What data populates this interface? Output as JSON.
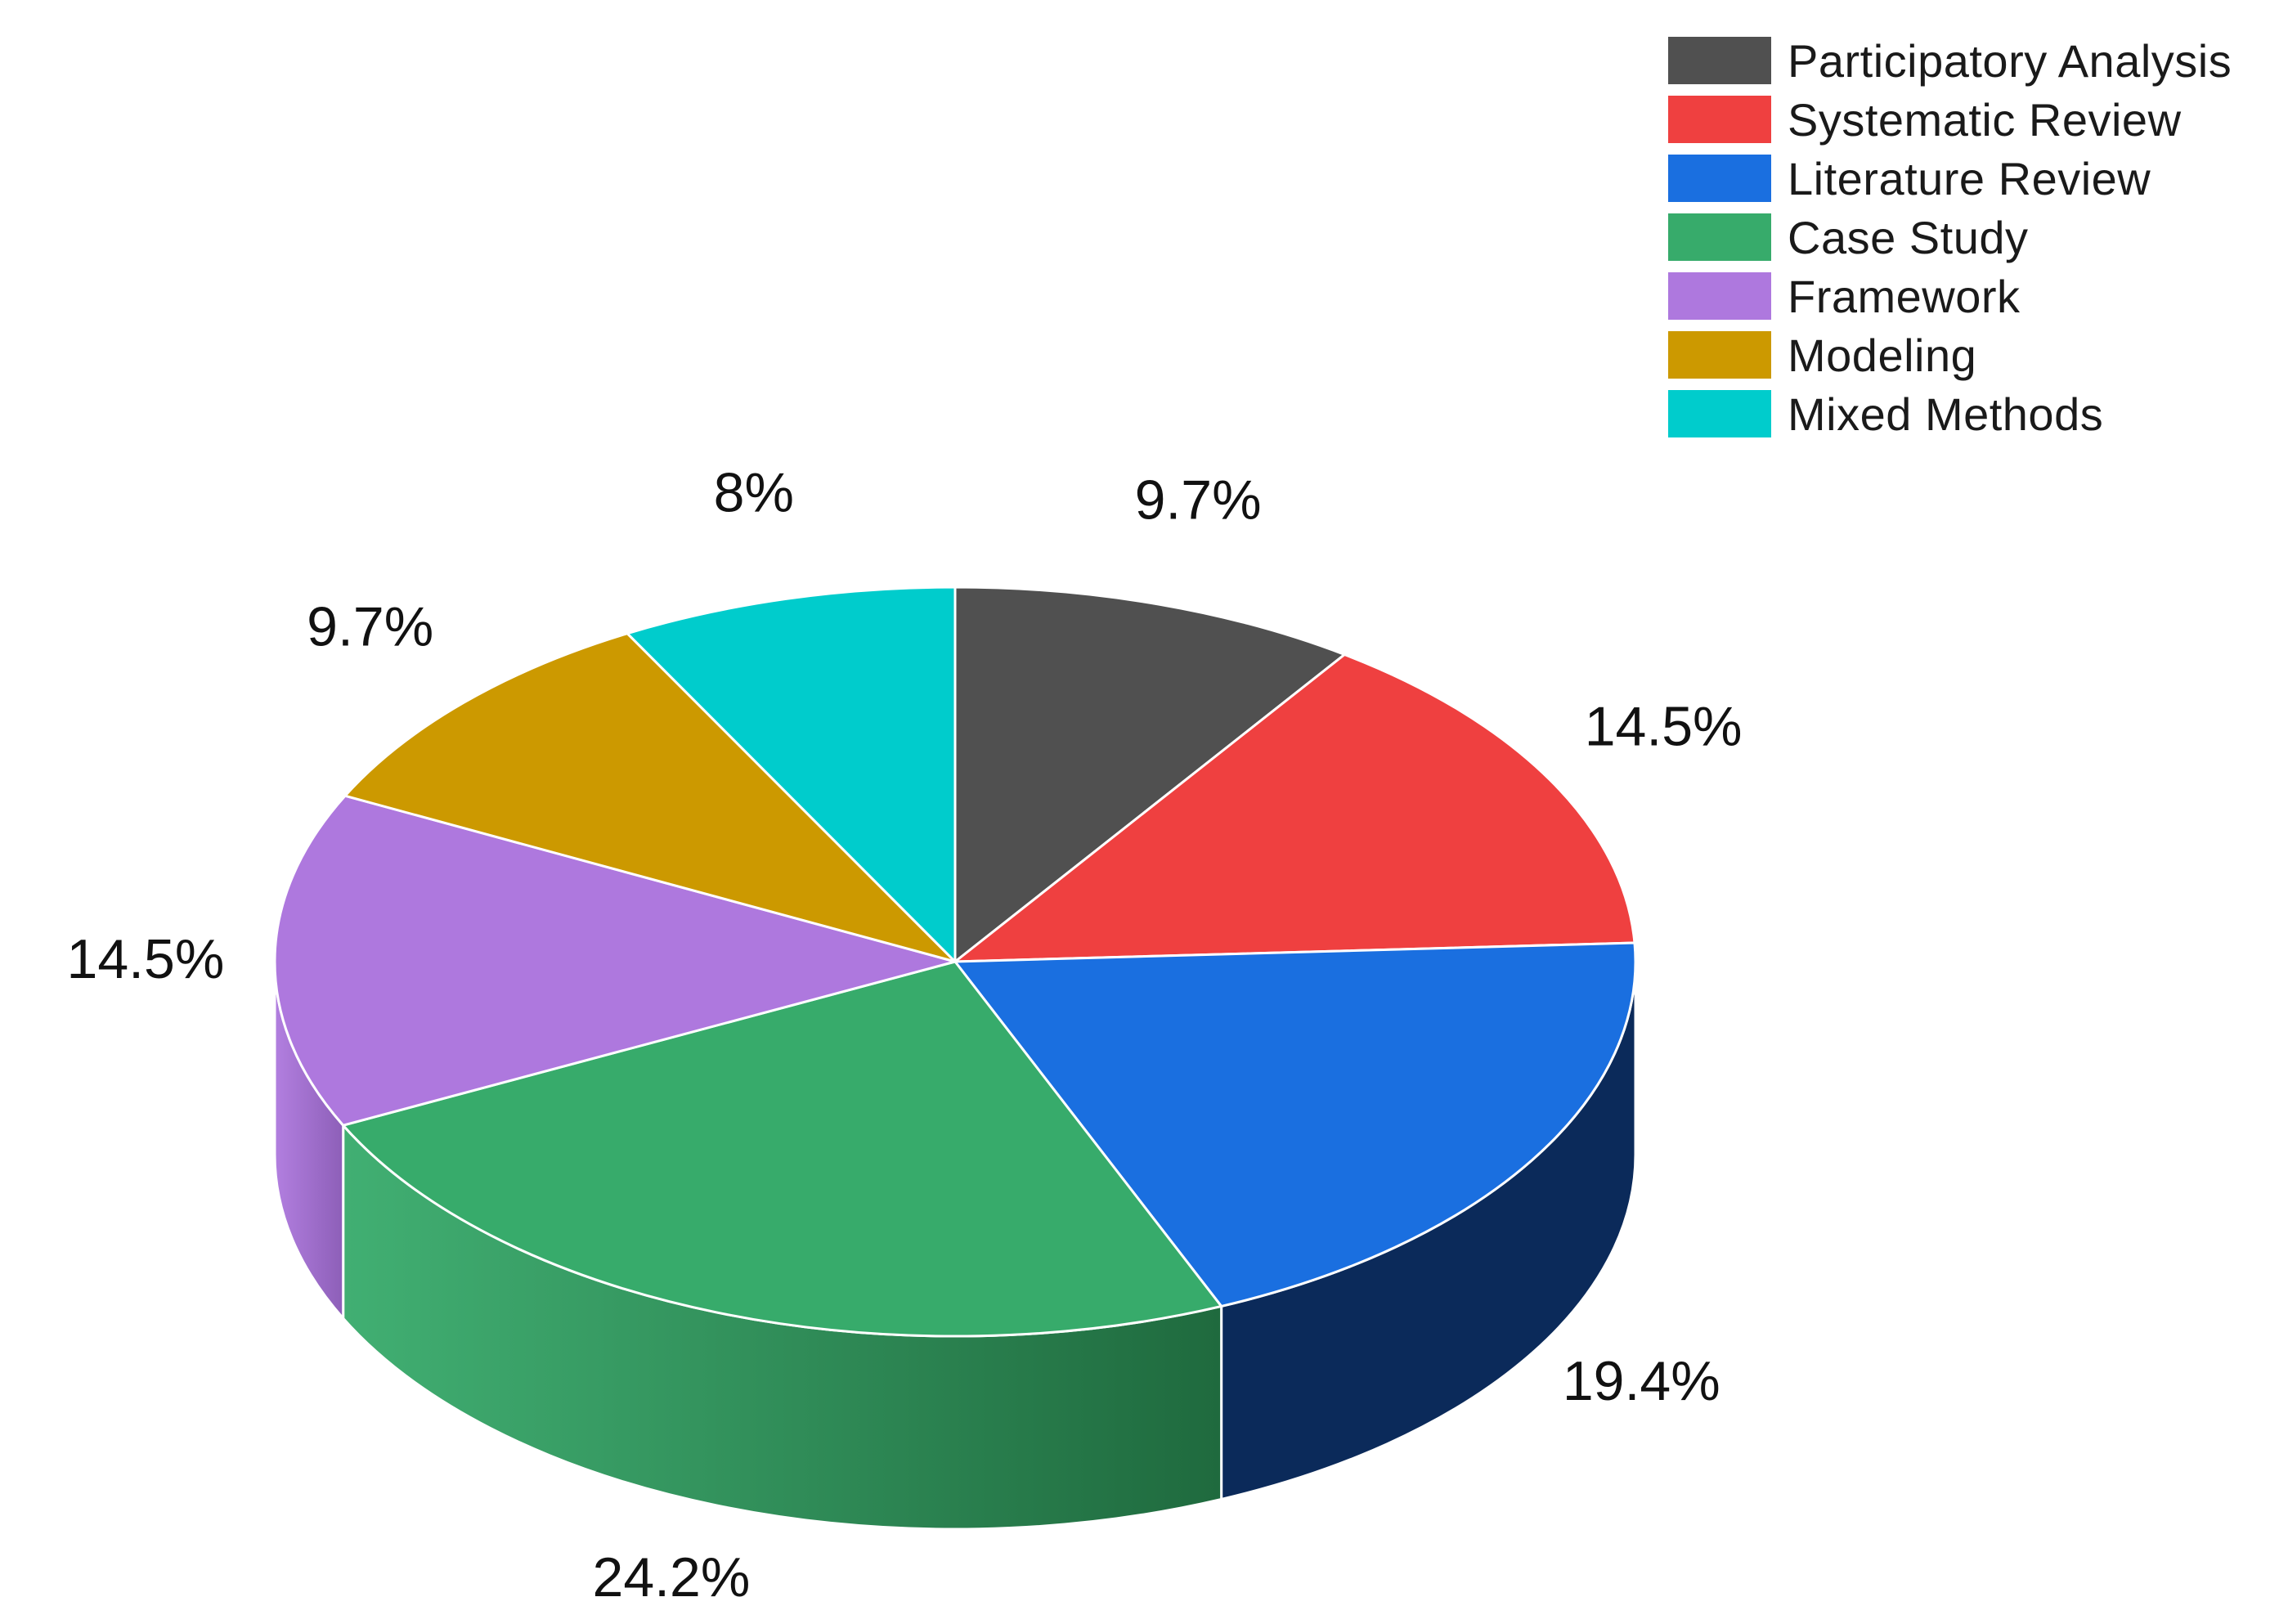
{
  "chart_data": {
    "type": "pie",
    "style": "3d",
    "legend_position": "top-right",
    "categories": [
      "Participatory Analysis",
      "Systematic Review",
      "Literature Review",
      "Case Study",
      "Framework",
      "Modeling",
      "Mixed Methods"
    ],
    "values": [
      9.7,
      14.5,
      19.4,
      24.2,
      14.5,
      9.7,
      8
    ],
    "labels": [
      "9.7%",
      "14.5%",
      "19.4%",
      "24.2%",
      "14.5%",
      "9.7%",
      "8%"
    ],
    "colors": [
      "#505050",
      "#ef4040",
      "#1a6fe0",
      "#37ab6b",
      "#ae78de",
      "#cc9900",
      "#00cccc"
    ],
    "side_colors": [
      "#2e2e2e",
      "#8a2424",
      "#0b2a5a",
      "#1f6a3e",
      "#8d5fb8",
      "#8a6800",
      "#008a8a"
    ],
    "slice_names": [
      "slice-participatory-analysis",
      "slice-systematic-review",
      "slice-literature-review",
      "slice-case-study",
      "slice-framework",
      "slice-modeling",
      "slice-mixed-methods"
    ]
  }
}
